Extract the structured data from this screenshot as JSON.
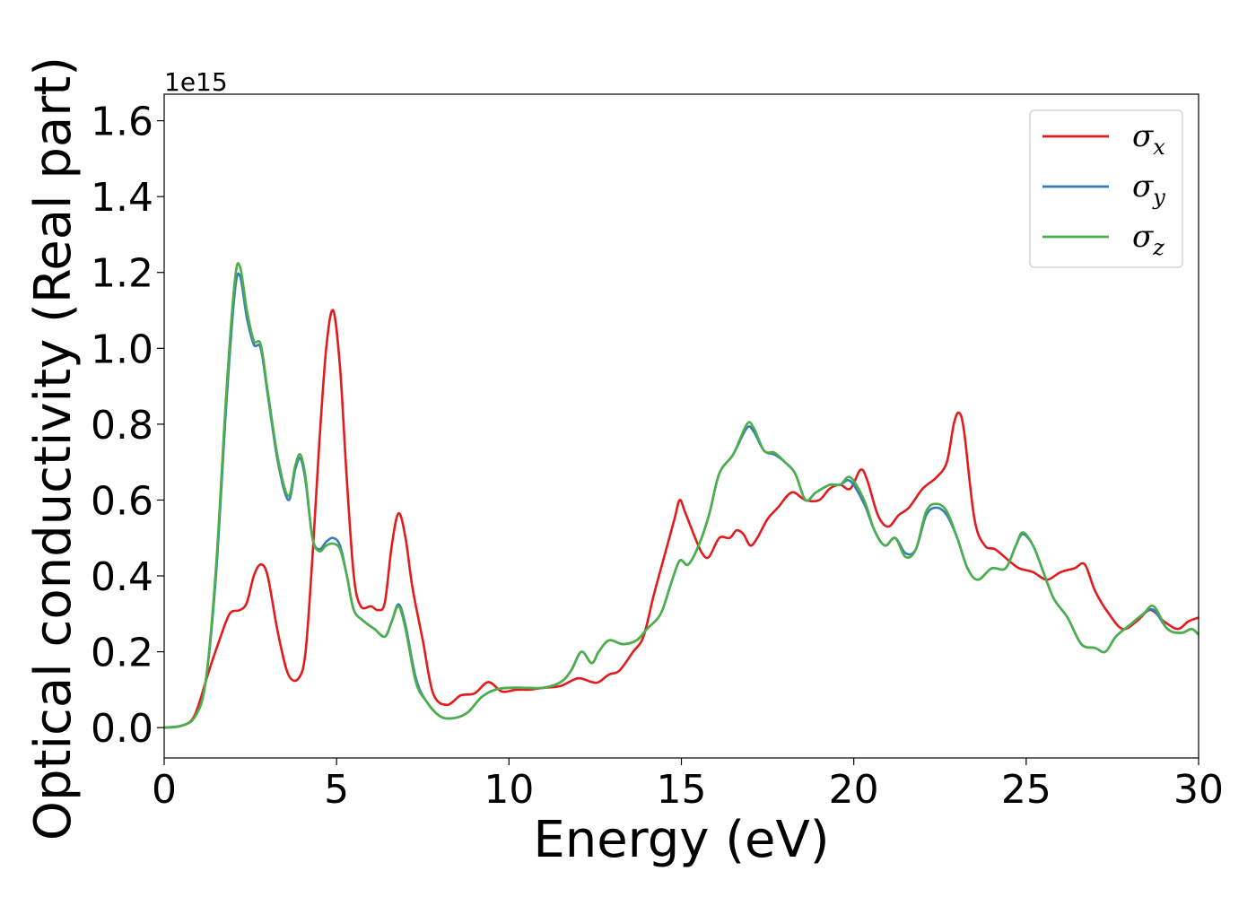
{
  "chart_data": {
    "type": "line",
    "title": "",
    "xlabel": "Energy (eV)",
    "ylabel": "Optical conductivity (Real part)",
    "y_offset_label": "1e15",
    "xlim": [
      0,
      30
    ],
    "ylim": [
      -0.08,
      1.67
    ],
    "x_ticks": [
      0,
      5,
      10,
      15,
      20,
      25,
      30
    ],
    "x_tick_labels": [
      "0",
      "5",
      "10",
      "15",
      "20",
      "25",
      "30"
    ],
    "y_ticks": [
      0.0,
      0.2,
      0.4,
      0.6,
      0.8,
      1.0,
      1.2,
      1.4,
      1.6
    ],
    "y_tick_labels": [
      "0.0",
      "0.2",
      "0.4",
      "0.6",
      "0.8",
      "1.0",
      "1.2",
      "1.4",
      "1.6"
    ],
    "grid": false,
    "legend_position": "top-right",
    "series": [
      {
        "name": "σx",
        "legend_base": "σ",
        "legend_sub": "x",
        "color": "#e41a1c",
        "points": [
          [
            0,
            0
          ],
          [
            0.5,
            0.005
          ],
          [
            0.8,
            0.02
          ],
          [
            1.0,
            0.06
          ],
          [
            1.3,
            0.15
          ],
          [
            1.6,
            0.23
          ],
          [
            1.9,
            0.3
          ],
          [
            2.2,
            0.31
          ],
          [
            2.4,
            0.33
          ],
          [
            2.6,
            0.4
          ],
          [
            2.8,
            0.43
          ],
          [
            3.0,
            0.4
          ],
          [
            3.3,
            0.25
          ],
          [
            3.6,
            0.14
          ],
          [
            3.9,
            0.13
          ],
          [
            4.1,
            0.2
          ],
          [
            4.3,
            0.45
          ],
          [
            4.5,
            0.75
          ],
          [
            4.7,
            1.0
          ],
          [
            4.9,
            1.1
          ],
          [
            5.1,
            0.95
          ],
          [
            5.3,
            0.65
          ],
          [
            5.5,
            0.4
          ],
          [
            5.7,
            0.32
          ],
          [
            6.0,
            0.32
          ],
          [
            6.2,
            0.31
          ],
          [
            6.4,
            0.33
          ],
          [
            6.6,
            0.48
          ],
          [
            6.8,
            0.565
          ],
          [
            7.0,
            0.5
          ],
          [
            7.2,
            0.37
          ],
          [
            7.5,
            0.23
          ],
          [
            7.8,
            0.09
          ],
          [
            8.2,
            0.06
          ],
          [
            8.6,
            0.085
          ],
          [
            9.0,
            0.09
          ],
          [
            9.4,
            0.12
          ],
          [
            9.8,
            0.095
          ],
          [
            10.2,
            0.1
          ],
          [
            10.6,
            0.1
          ],
          [
            11.0,
            0.105
          ],
          [
            11.5,
            0.11
          ],
          [
            12.0,
            0.13
          ],
          [
            12.4,
            0.12
          ],
          [
            12.6,
            0.12
          ],
          [
            12.9,
            0.14
          ],
          [
            13.2,
            0.15
          ],
          [
            13.6,
            0.2
          ],
          [
            13.9,
            0.24
          ],
          [
            14.2,
            0.35
          ],
          [
            14.5,
            0.45
          ],
          [
            14.8,
            0.55
          ],
          [
            14.95,
            0.6
          ],
          [
            15.1,
            0.57
          ],
          [
            15.4,
            0.5
          ],
          [
            15.6,
            0.46
          ],
          [
            15.8,
            0.45
          ],
          [
            16.1,
            0.5
          ],
          [
            16.4,
            0.5
          ],
          [
            16.6,
            0.52
          ],
          [
            16.8,
            0.51
          ],
          [
            17.0,
            0.48
          ],
          [
            17.2,
            0.5
          ],
          [
            17.5,
            0.55
          ],
          [
            17.8,
            0.58
          ],
          [
            18.2,
            0.62
          ],
          [
            18.6,
            0.6
          ],
          [
            19.0,
            0.6
          ],
          [
            19.3,
            0.63
          ],
          [
            19.6,
            0.64
          ],
          [
            19.9,
            0.63
          ],
          [
            20.2,
            0.68
          ],
          [
            20.4,
            0.65
          ],
          [
            20.7,
            0.56
          ],
          [
            21.0,
            0.53
          ],
          [
            21.3,
            0.56
          ],
          [
            21.6,
            0.58
          ],
          [
            22.0,
            0.63
          ],
          [
            22.4,
            0.66
          ],
          [
            22.7,
            0.7
          ],
          [
            22.9,
            0.8
          ],
          [
            23.05,
            0.83
          ],
          [
            23.2,
            0.78
          ],
          [
            23.5,
            0.55
          ],
          [
            23.8,
            0.48
          ],
          [
            24.1,
            0.47
          ],
          [
            24.5,
            0.44
          ],
          [
            24.8,
            0.42
          ],
          [
            25.2,
            0.41
          ],
          [
            25.6,
            0.39
          ],
          [
            26.0,
            0.41
          ],
          [
            26.4,
            0.42
          ],
          [
            26.7,
            0.43
          ],
          [
            27.0,
            0.36
          ],
          [
            27.4,
            0.3
          ],
          [
            27.8,
            0.26
          ],
          [
            28.2,
            0.28
          ],
          [
            28.6,
            0.31
          ],
          [
            29.0,
            0.28
          ],
          [
            29.4,
            0.26
          ],
          [
            29.7,
            0.28
          ],
          [
            30.0,
            0.29
          ]
        ]
      },
      {
        "name": "σy",
        "legend_base": "σ",
        "legend_sub": "y",
        "color": "#377eb8",
        "points": [
          [
            0,
            0
          ],
          [
            0.5,
            0.005
          ],
          [
            0.9,
            0.03
          ],
          [
            1.2,
            0.12
          ],
          [
            1.5,
            0.4
          ],
          [
            1.8,
            0.85
          ],
          [
            2.05,
            1.15
          ],
          [
            2.2,
            1.19
          ],
          [
            2.4,
            1.08
          ],
          [
            2.6,
            1.01
          ],
          [
            2.8,
            1.0
          ],
          [
            3.0,
            0.88
          ],
          [
            3.3,
            0.7
          ],
          [
            3.6,
            0.6
          ],
          [
            3.8,
            0.68
          ],
          [
            3.95,
            0.71
          ],
          [
            4.1,
            0.65
          ],
          [
            4.3,
            0.5
          ],
          [
            4.5,
            0.47
          ],
          [
            4.7,
            0.49
          ],
          [
            4.9,
            0.5
          ],
          [
            5.1,
            0.48
          ],
          [
            5.3,
            0.4
          ],
          [
            5.5,
            0.31
          ],
          [
            5.8,
            0.28
          ],
          [
            6.1,
            0.26
          ],
          [
            6.4,
            0.24
          ],
          [
            6.6,
            0.28
          ],
          [
            6.8,
            0.325
          ],
          [
            7.0,
            0.27
          ],
          [
            7.3,
            0.13
          ],
          [
            7.6,
            0.07
          ],
          [
            8.0,
            0.03
          ],
          [
            8.4,
            0.025
          ],
          [
            8.8,
            0.04
          ],
          [
            9.2,
            0.08
          ],
          [
            9.6,
            0.1
          ],
          [
            10.0,
            0.105
          ],
          [
            10.5,
            0.105
          ],
          [
            11.0,
            0.105
          ],
          [
            11.5,
            0.12
          ],
          [
            11.8,
            0.15
          ],
          [
            12.1,
            0.2
          ],
          [
            12.4,
            0.17
          ],
          [
            12.6,
            0.2
          ],
          [
            12.9,
            0.23
          ],
          [
            13.3,
            0.22
          ],
          [
            13.7,
            0.23
          ],
          [
            14.0,
            0.26
          ],
          [
            14.4,
            0.3
          ],
          [
            14.7,
            0.38
          ],
          [
            14.95,
            0.44
          ],
          [
            15.2,
            0.43
          ],
          [
            15.5,
            0.48
          ],
          [
            15.8,
            0.56
          ],
          [
            16.1,
            0.67
          ],
          [
            16.5,
            0.72
          ],
          [
            16.9,
            0.79
          ],
          [
            17.1,
            0.78
          ],
          [
            17.4,
            0.73
          ],
          [
            17.7,
            0.72
          ],
          [
            18.0,
            0.7
          ],
          [
            18.3,
            0.67
          ],
          [
            18.6,
            0.6
          ],
          [
            18.9,
            0.62
          ],
          [
            19.3,
            0.64
          ],
          [
            19.6,
            0.64
          ],
          [
            19.9,
            0.65
          ],
          [
            20.3,
            0.59
          ],
          [
            20.6,
            0.52
          ],
          [
            20.9,
            0.48
          ],
          [
            21.2,
            0.5
          ],
          [
            21.5,
            0.46
          ],
          [
            21.8,
            0.47
          ],
          [
            22.1,
            0.56
          ],
          [
            22.4,
            0.58
          ],
          [
            22.7,
            0.56
          ],
          [
            23.0,
            0.5
          ],
          [
            23.3,
            0.42
          ],
          [
            23.6,
            0.39
          ],
          [
            24.0,
            0.42
          ],
          [
            24.4,
            0.42
          ],
          [
            24.7,
            0.48
          ],
          [
            24.9,
            0.51
          ],
          [
            25.2,
            0.48
          ],
          [
            25.5,
            0.41
          ],
          [
            25.8,
            0.34
          ],
          [
            26.2,
            0.29
          ],
          [
            26.6,
            0.22
          ],
          [
            27.0,
            0.21
          ],
          [
            27.3,
            0.2
          ],
          [
            27.6,
            0.24
          ],
          [
            28.0,
            0.27
          ],
          [
            28.4,
            0.3
          ],
          [
            28.7,
            0.31
          ],
          [
            29.1,
            0.26
          ],
          [
            29.5,
            0.25
          ],
          [
            29.8,
            0.26
          ],
          [
            30.0,
            0.245
          ]
        ]
      },
      {
        "name": "σz",
        "legend_base": "σ",
        "legend_sub": "z",
        "color": "#4daf4a",
        "points": [
          [
            0,
            0
          ],
          [
            0.5,
            0.005
          ],
          [
            0.9,
            0.03
          ],
          [
            1.2,
            0.12
          ],
          [
            1.5,
            0.42
          ],
          [
            1.8,
            0.88
          ],
          [
            2.05,
            1.18
          ],
          [
            2.2,
            1.215
          ],
          [
            2.4,
            1.1
          ],
          [
            2.6,
            1.02
          ],
          [
            2.8,
            1.01
          ],
          [
            3.0,
            0.89
          ],
          [
            3.3,
            0.71
          ],
          [
            3.6,
            0.61
          ],
          [
            3.8,
            0.69
          ],
          [
            3.95,
            0.72
          ],
          [
            4.1,
            0.66
          ],
          [
            4.3,
            0.5
          ],
          [
            4.5,
            0.465
          ],
          [
            4.7,
            0.48
          ],
          [
            4.9,
            0.485
          ],
          [
            5.1,
            0.47
          ],
          [
            5.3,
            0.4
          ],
          [
            5.5,
            0.31
          ],
          [
            5.8,
            0.28
          ],
          [
            6.1,
            0.26
          ],
          [
            6.4,
            0.24
          ],
          [
            6.6,
            0.28
          ],
          [
            6.8,
            0.32
          ],
          [
            7.0,
            0.26
          ],
          [
            7.3,
            0.12
          ],
          [
            7.6,
            0.07
          ],
          [
            8.0,
            0.03
          ],
          [
            8.4,
            0.025
          ],
          [
            8.8,
            0.04
          ],
          [
            9.2,
            0.08
          ],
          [
            9.6,
            0.1
          ],
          [
            10.0,
            0.105
          ],
          [
            10.5,
            0.105
          ],
          [
            11.0,
            0.105
          ],
          [
            11.5,
            0.12
          ],
          [
            11.8,
            0.15
          ],
          [
            12.1,
            0.2
          ],
          [
            12.4,
            0.17
          ],
          [
            12.6,
            0.2
          ],
          [
            12.9,
            0.23
          ],
          [
            13.3,
            0.22
          ],
          [
            13.7,
            0.23
          ],
          [
            14.0,
            0.26
          ],
          [
            14.4,
            0.3
          ],
          [
            14.7,
            0.38
          ],
          [
            14.95,
            0.44
          ],
          [
            15.2,
            0.43
          ],
          [
            15.5,
            0.48
          ],
          [
            15.8,
            0.56
          ],
          [
            16.1,
            0.67
          ],
          [
            16.5,
            0.72
          ],
          [
            16.9,
            0.8
          ],
          [
            17.1,
            0.79
          ],
          [
            17.4,
            0.73
          ],
          [
            17.7,
            0.725
          ],
          [
            18.0,
            0.7
          ],
          [
            18.3,
            0.67
          ],
          [
            18.6,
            0.6
          ],
          [
            18.9,
            0.62
          ],
          [
            19.3,
            0.64
          ],
          [
            19.6,
            0.64
          ],
          [
            19.9,
            0.66
          ],
          [
            20.3,
            0.6
          ],
          [
            20.6,
            0.52
          ],
          [
            20.9,
            0.48
          ],
          [
            21.2,
            0.5
          ],
          [
            21.5,
            0.45
          ],
          [
            21.8,
            0.47
          ],
          [
            22.1,
            0.57
          ],
          [
            22.4,
            0.59
          ],
          [
            22.7,
            0.57
          ],
          [
            23.0,
            0.5
          ],
          [
            23.3,
            0.42
          ],
          [
            23.6,
            0.39
          ],
          [
            24.0,
            0.42
          ],
          [
            24.4,
            0.42
          ],
          [
            24.7,
            0.48
          ],
          [
            24.9,
            0.515
          ],
          [
            25.2,
            0.48
          ],
          [
            25.5,
            0.41
          ],
          [
            25.8,
            0.34
          ],
          [
            26.2,
            0.29
          ],
          [
            26.6,
            0.22
          ],
          [
            27.0,
            0.21
          ],
          [
            27.3,
            0.2
          ],
          [
            27.6,
            0.24
          ],
          [
            28.0,
            0.27
          ],
          [
            28.4,
            0.3
          ],
          [
            28.7,
            0.32
          ],
          [
            29.1,
            0.26
          ],
          [
            29.5,
            0.25
          ],
          [
            29.8,
            0.26
          ],
          [
            30.0,
            0.245
          ]
        ]
      }
    ]
  }
}
